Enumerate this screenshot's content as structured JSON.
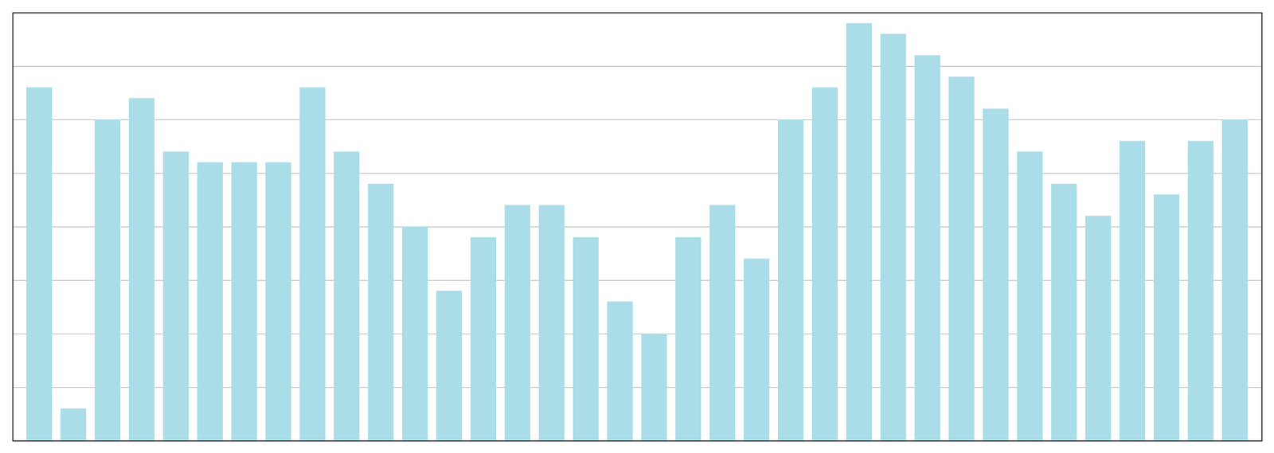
{
  "chart_data": {
    "type": "bar",
    "categories": [
      null,
      null,
      null,
      null,
      null,
      null,
      null,
      null,
      null,
      null,
      null,
      null,
      null,
      null,
      null,
      null,
      null,
      null,
      null,
      null,
      null,
      null,
      null,
      null,
      null,
      null,
      null,
      null,
      null,
      null,
      null,
      null,
      null,
      null,
      null,
      null
    ],
    "values": [
      33,
      3,
      30,
      32,
      27,
      26,
      26,
      26,
      33,
      27,
      24,
      20,
      14,
      19,
      22,
      22,
      19,
      13,
      10,
      19,
      22,
      17,
      30,
      33,
      39,
      38,
      36,
      34,
      31,
      27,
      24,
      21,
      28,
      23,
      28,
      30
    ],
    "color": "#aadde8",
    "ylim": [
      0,
      40
    ],
    "yticks": [
      5,
      10,
      15,
      20,
      25,
      30,
      35,
      40
    ],
    "grid": true,
    "tick_labels": false
  }
}
